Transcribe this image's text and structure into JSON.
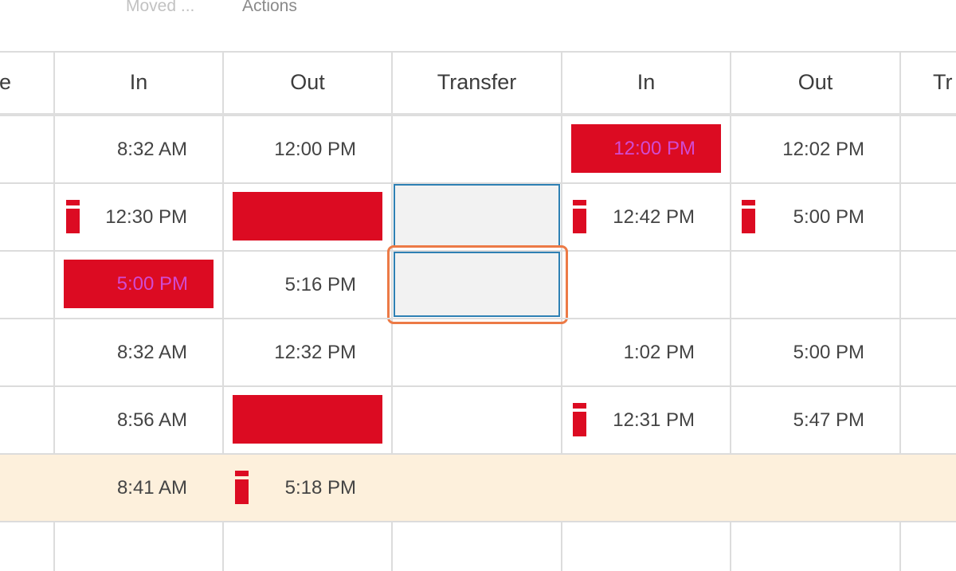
{
  "toolbar": {
    "moved_label": "Moved ...",
    "actions_label": "Actions"
  },
  "columns": [
    "e",
    "In",
    "Out",
    "Transfer",
    "In",
    "Out",
    "Tr"
  ],
  "rows": [
    {
      "in1": "8:32 AM",
      "out1": "12:00 PM",
      "in2": "12:00 PM",
      "out2": "12:02 PM"
    },
    {
      "in1": "12:30 PM",
      "in2": "12:42 PM",
      "out2": "5:00 PM"
    },
    {
      "in1": "5:00 PM",
      "out1": "5:16 PM"
    },
    {
      "in1": "8:32 AM",
      "out1": "12:32 PM",
      "in2": "1:02 PM",
      "out2": "5:00 PM"
    },
    {
      "in1": "8:56 AM",
      "in2": "12:31 PM",
      "out2": "5:47 PM"
    },
    {
      "in1": "8:41 AM",
      "out1": "5:18 PM"
    }
  ],
  "colors": {
    "alert_red": "#dc0b22",
    "alert_text": "#d14bd1",
    "highlight_row": "#fdf0dc",
    "focus_border": "#2e80b4",
    "focus_ring": "#ec7a46"
  },
  "icons": {
    "flag": "flag-marker-icon"
  }
}
